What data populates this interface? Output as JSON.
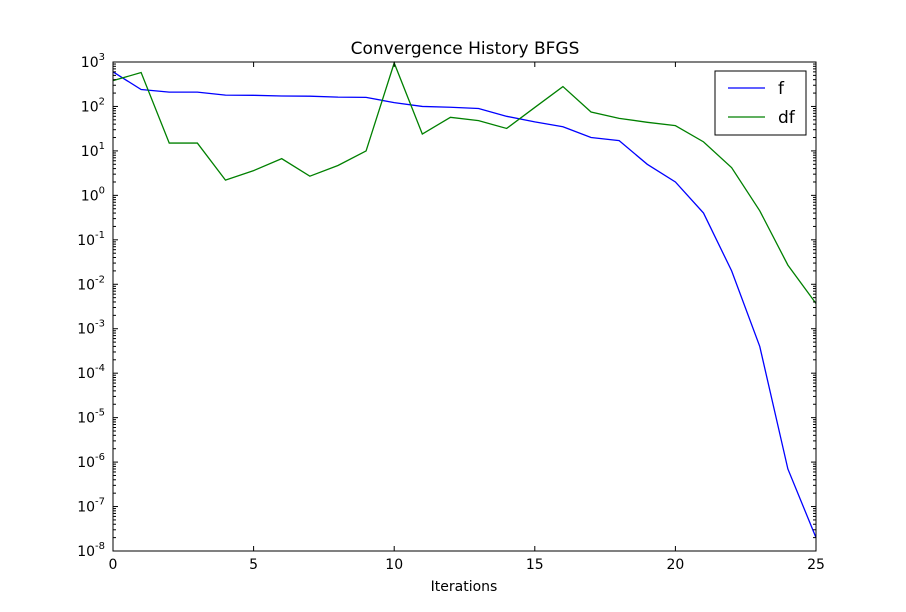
{
  "chart_data": {
    "type": "line",
    "title": "Convergence History BFGS",
    "xlabel": "Iterations",
    "ylabel": "",
    "xlim": [
      0,
      25
    ],
    "ylim": [
      1e-08,
      1000
    ],
    "yscale": "log",
    "grid": false,
    "legend_position": "top-right",
    "x_ticks": [
      0,
      5,
      10,
      15,
      20,
      25
    ],
    "y_ticks": [
      {
        "base": "10",
        "exp": "3"
      },
      {
        "base": "10",
        "exp": "2"
      },
      {
        "base": "10",
        "exp": "1"
      },
      {
        "base": "10",
        "exp": "0"
      },
      {
        "base": "10",
        "exp": "-1"
      },
      {
        "base": "10",
        "exp": "-2"
      },
      {
        "base": "10",
        "exp": "-3"
      },
      {
        "base": "10",
        "exp": "-4"
      },
      {
        "base": "10",
        "exp": "-5"
      },
      {
        "base": "10",
        "exp": "-6"
      },
      {
        "base": "10",
        "exp": "-7"
      },
      {
        "base": "10",
        "exp": "-8"
      }
    ],
    "x": [
      0,
      1,
      2,
      3,
      4,
      5,
      6,
      7,
      8,
      9,
      10,
      11,
      12,
      13,
      14,
      15,
      16,
      17,
      18,
      19,
      20,
      21,
      22,
      23,
      24,
      25
    ],
    "series": [
      {
        "name": "f",
        "color": "#0000ff",
        "values": [
          600,
          240,
          210,
          210,
          180,
          178,
          172,
          170,
          162,
          160,
          122,
          100,
          96,
          90,
          60,
          45,
          35,
          20,
          17,
          5,
          2,
          0.4,
          0.02,
          0.0004,
          7e-07,
          2e-08
        ]
      },
      {
        "name": "df",
        "color": "#008000",
        "values": [
          380,
          580,
          15,
          15,
          2.2,
          3.6,
          6.7,
          2.7,
          4.7,
          10,
          950,
          24,
          57,
          48,
          32,
          95,
          280,
          75,
          54,
          44,
          37,
          16,
          4.2,
          0.45,
          0.027,
          0.0037
        ]
      }
    ]
  }
}
